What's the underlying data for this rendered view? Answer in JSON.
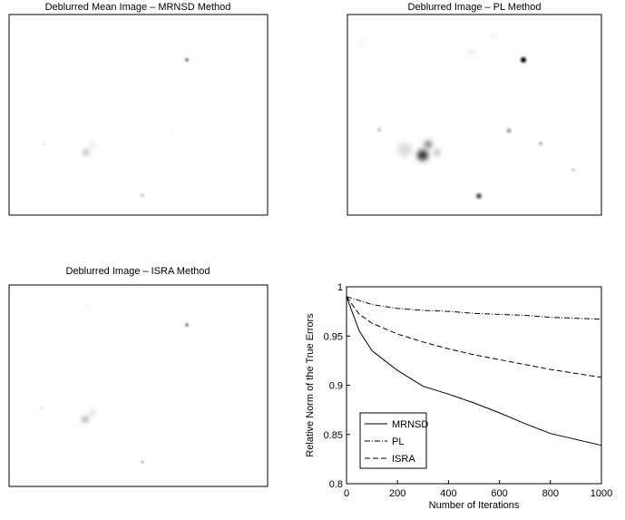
{
  "images": [
    {
      "title": "Deblurred Mean Image – MRNSD Method"
    },
    {
      "title": "Deblurred Image – PL Method"
    },
    {
      "title": "Deblurred Image – ISRA Method"
    }
  ],
  "chart_data": {
    "type": "line",
    "xlabel": "Number of Iterations",
    "ylabel": "Relative Norm of the True Errors",
    "x": [
      0,
      50,
      100,
      200,
      300,
      400,
      500,
      600,
      700,
      800,
      900,
      1000
    ],
    "series": [
      {
        "name": "MRNSD",
        "color": "#000000",
        "dash": "solid",
        "values": [
          0.99,
          0.955,
          0.935,
          0.915,
          0.899,
          0.891,
          0.882,
          0.872,
          0.861,
          0.851,
          0.845,
          0.839
        ]
      },
      {
        "name": "PL",
        "color": "#000000",
        "dash": "dashdot",
        "values": [
          0.99,
          0.986,
          0.982,
          0.978,
          0.976,
          0.975,
          0.973,
          0.972,
          0.971,
          0.969,
          0.968,
          0.967
        ]
      },
      {
        "name": "ISRA",
        "color": "#000000",
        "dash": "dashed",
        "values": [
          0.99,
          0.972,
          0.963,
          0.952,
          0.944,
          0.937,
          0.931,
          0.926,
          0.921,
          0.916,
          0.912,
          0.908
        ]
      }
    ],
    "xlim": [
      0,
      1000
    ],
    "xticks": [
      0,
      200,
      400,
      600,
      800,
      1000
    ],
    "ylim": [
      0.8,
      1
    ],
    "yticks": [
      0.8,
      0.85,
      0.9,
      0.95,
      1
    ],
    "legend": "lower left"
  }
}
